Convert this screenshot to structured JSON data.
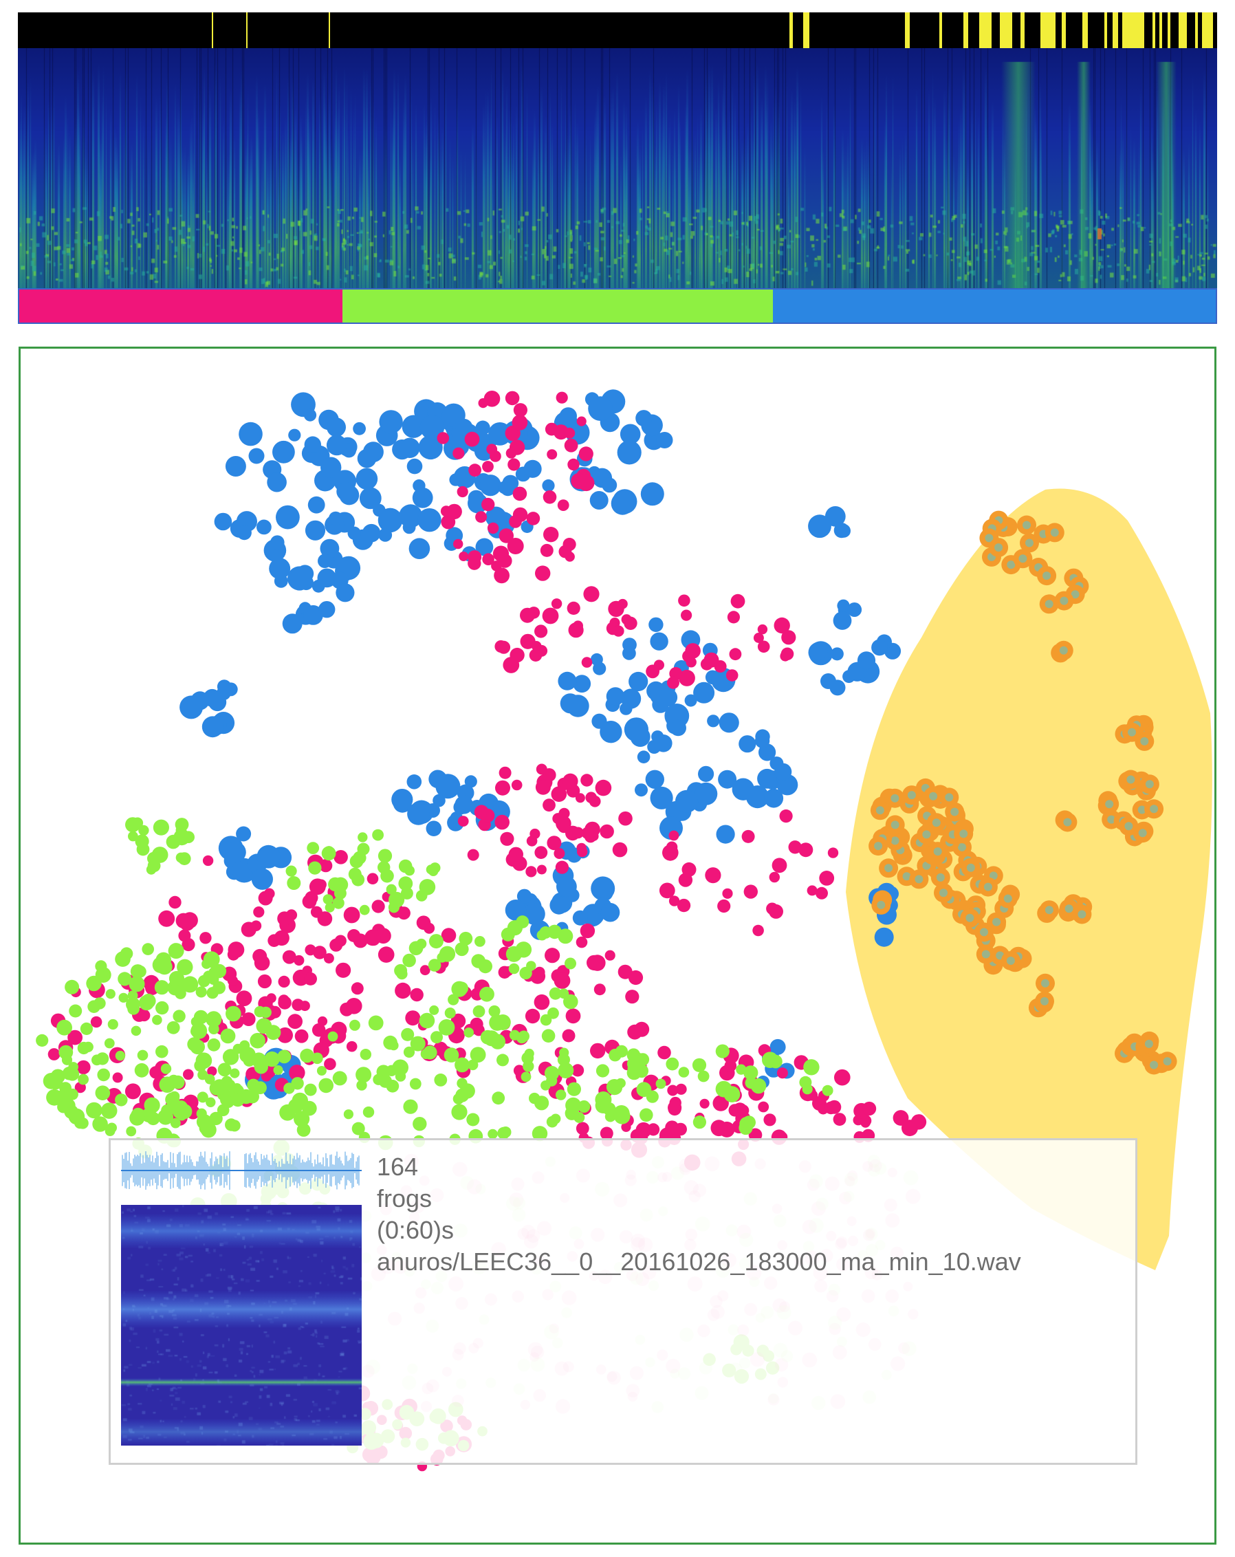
{
  "colors": {
    "class_pink": "#f0157a",
    "class_green": "#8ef042",
    "class_blue": "#2b86e2",
    "selection_highlight": "#f2ee3a",
    "selection_region_fill": "#ffe57a",
    "selected_point_fill": "#f39b2c",
    "selected_point_core": "#9ab38a",
    "frame_border": "#3b9a44"
  },
  "icons": {
    "waveform": "waveform-icon",
    "spectrogram": "spectrogram-thumbnail"
  },
  "label_bar": {
    "segments": [
      {
        "class": "pink",
        "fraction": 0.27
      },
      {
        "class": "green",
        "fraction": 0.36
      },
      {
        "class": "blue",
        "fraction": 0.37
      }
    ]
  },
  "hover_panel": {
    "count": "164",
    "label": "frogs",
    "time_range": "(0:60)s",
    "file": "anuros/LEEC36__0__20161026_183000_ma_min_10.wav"
  }
}
